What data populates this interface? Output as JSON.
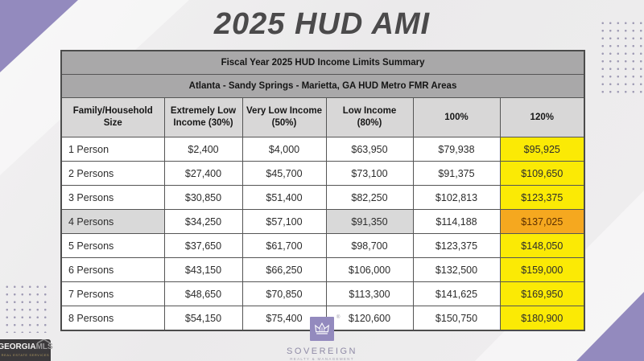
{
  "title": "2025 HUD AMI",
  "table": {
    "summary_header": "Fiscal Year 2025 HUD Income Limits Summary",
    "area_header": "Atlanta - Sandy Springs - Marietta, GA HUD Metro FMR Areas",
    "columns": [
      "Family/Household Size",
      "Extremely Low Income (30%)",
      "Very Low Income (50%)",
      "Low Income (80%)",
      "100%",
      "120%"
    ],
    "rows": [
      {
        "label": "1 Person",
        "values": [
          "$2,400",
          "$4,000",
          "$63,950",
          "$79,938",
          "$95,925"
        ],
        "shaded": false
      },
      {
        "label": "2 Persons",
        "values": [
          "$27,400",
          "$45,700",
          "$73,100",
          "$91,375",
          "$109,650"
        ],
        "shaded": false
      },
      {
        "label": "3 Persons",
        "values": [
          "$30,850",
          "$51,400",
          "$82,250",
          "$102,813",
          "$123,375"
        ],
        "shaded": false
      },
      {
        "label": "4 Persons",
        "values": [
          "$34,250",
          "$57,100",
          "$91,350",
          "$114,188",
          "$137,025"
        ],
        "shaded": true
      },
      {
        "label": "5 Persons",
        "values": [
          "$37,650",
          "$61,700",
          "$98,700",
          "$123,375",
          "$148,050"
        ],
        "shaded": false
      },
      {
        "label": "6 Persons",
        "values": [
          "$43,150",
          "$66,250",
          "$106,000",
          "$132,500",
          "$159,000"
        ],
        "shaded": false
      },
      {
        "label": "7 Persons",
        "values": [
          "$48,650",
          "$70,850",
          "$113,300",
          "$141,625",
          "$169,950"
        ],
        "shaded": false
      },
      {
        "label": "8 Persons",
        "values": [
          "$54,150",
          "$75,400",
          "$120,600",
          "$150,750",
          "$180,900"
        ],
        "shaded": false
      }
    ]
  },
  "branding": {
    "georgia_mls": {
      "name_part1": "GEORGIA",
      "name_part2": "MLS",
      "tagline": "REAL ESTATE SERVICES"
    },
    "sovereign": {
      "name": "SOVEREIGN",
      "tagline": "REALTY & MANAGEMENT",
      "registered_mark": "®"
    }
  },
  "colors": {
    "accent_purple": "#938ABE",
    "dot_gray_purple": "#8C87A6",
    "band_gray": "#A9A8A9",
    "column_header_gray": "#D8D7D7",
    "highlight_yellow": "#FBEA05",
    "highlight_orange": "#F5A81F",
    "shaded_cell_gray": "#D9D9D9",
    "title_gray": "#4B4A4B"
  }
}
